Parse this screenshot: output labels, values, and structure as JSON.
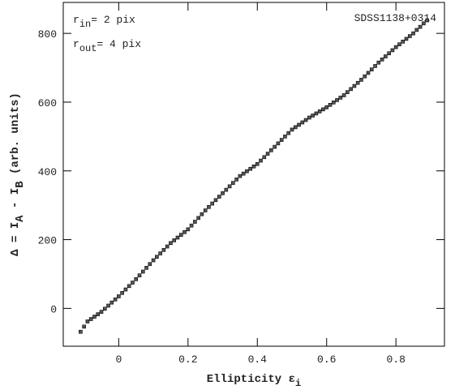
{
  "chart_data": {
    "type": "scatter",
    "annotation": "SDSS1138+0314",
    "rin": [
      "r",
      "in",
      "= 2 pix"
    ],
    "rout": [
      "r",
      "out",
      "= 4 pix"
    ],
    "xlabel": [
      "Ellipticity ε",
      "i"
    ],
    "ylabel": [
      "Δ = I",
      "A",
      " - I",
      "B",
      " (arb. units)"
    ],
    "color": "#555555",
    "x": [
      -0.11,
      -0.1,
      -0.09,
      -0.08,
      -0.07,
      -0.06,
      -0.05,
      -0.04,
      -0.03,
      -0.02,
      -0.01,
      0,
      0.01,
      0.02,
      0.03,
      0.04,
      0.05,
      0.06,
      0.07,
      0.08,
      0.09,
      0.1,
      0.11,
      0.12,
      0.13,
      0.14,
      0.15,
      0.16,
      0.17,
      0.18,
      0.19,
      0.2,
      0.21,
      0.22,
      0.23,
      0.24,
      0.25,
      0.26,
      0.27,
      0.28,
      0.29,
      0.3,
      0.31,
      0.32,
      0.33,
      0.34,
      0.35,
      0.36,
      0.37,
      0.38,
      0.39,
      0.4,
      0.41,
      0.42,
      0.43,
      0.44,
      0.45,
      0.46,
      0.47,
      0.48,
      0.49,
      0.5,
      0.51,
      0.52,
      0.53,
      0.54,
      0.55,
      0.56,
      0.57,
      0.58,
      0.59,
      0.6,
      0.61,
      0.62,
      0.63,
      0.64,
      0.65,
      0.66,
      0.67,
      0.68,
      0.69,
      0.7,
      0.71,
      0.72,
      0.73,
      0.74,
      0.75,
      0.76,
      0.77,
      0.78,
      0.79,
      0.8,
      0.81,
      0.82,
      0.83,
      0.84,
      0.85,
      0.86,
      0.87,
      0.88,
      0.89
    ],
    "values": [
      -68,
      -53,
      -38,
      -31,
      -24,
      -17,
      -10,
      -1,
      8,
      17,
      26,
      35,
      45,
      55,
      65,
      75,
      85,
      96,
      107,
      118,
      129,
      140,
      150,
      160,
      170,
      180,
      190,
      198,
      206,
      214,
      222,
      230,
      241,
      252,
      263,
      274,
      285,
      295,
      305,
      315,
      325,
      335,
      345,
      355,
      365,
      375,
      385,
      392,
      399,
      406,
      413,
      420,
      430,
      440,
      450,
      460,
      470,
      480,
      490,
      500,
      510,
      520,
      527,
      534,
      541,
      548,
      555,
      561,
      567,
      573,
      579,
      585,
      592,
      599,
      606,
      613,
      620,
      629,
      638,
      647,
      656,
      665,
      675,
      685,
      695,
      705,
      715,
      724,
      733,
      742,
      751,
      760,
      768,
      776,
      784,
      792,
      800,
      810,
      819,
      829,
      838
    ],
    "xlim": [
      -0.16,
      0.94
    ],
    "xticks": [
      0,
      0.2,
      0.4,
      0.6,
      0.8
    ],
    "ylim": [
      -110,
      890
    ],
    "yticks": [
      0,
      200,
      400,
      600,
      800
    ]
  }
}
